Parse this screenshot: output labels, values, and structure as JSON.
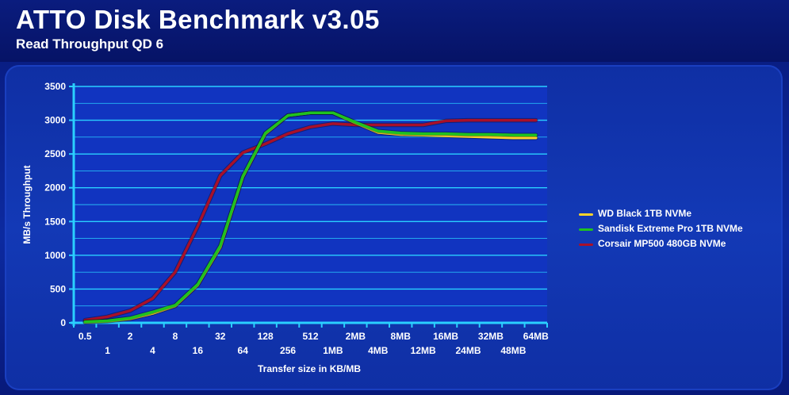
{
  "header": {
    "title": "ATTO Disk Benchmark v3.05",
    "subtitle": "Read Throughput QD 6"
  },
  "colors": {
    "background": "#0a1f86",
    "plot_background": "#1134c0",
    "gridline": "#2ad0ff",
    "axis": "#2ad0ff",
    "text": "#ffffff"
  },
  "chart_data": {
    "type": "line",
    "title": "",
    "xlabel": "Transfer size in KB/MB",
    "ylabel": "MB/s Throughput",
    "ylim": [
      0,
      3500
    ],
    "yticks": [
      0,
      500,
      1000,
      1500,
      2000,
      2500,
      3000,
      3500
    ],
    "grid": true,
    "legend_position": "right",
    "categories": [
      "0.5",
      "1",
      "2",
      "4",
      "8",
      "16",
      "32",
      "64",
      "128",
      "256",
      "512",
      "1MB",
      "2MB",
      "4MB",
      "8MB",
      "12MB",
      "16MB",
      "24MB",
      "32MB",
      "48MB",
      "64MB"
    ],
    "series": [
      {
        "name": "WD Black 1TB NVMe",
        "color": "#ffd42a",
        "values": [
          10,
          25,
          60,
          140,
          250,
          560,
          1120,
          2160,
          2800,
          3070,
          3110,
          3110,
          2960,
          2820,
          2790,
          2780,
          2770,
          2760,
          2750,
          2740,
          2740
        ]
      },
      {
        "name": "Sandisk Extreme Pro 1TB NVMe",
        "color": "#1fc21f",
        "values": [
          15,
          30,
          70,
          160,
          260,
          570,
          1140,
          2170,
          2810,
          3070,
          3110,
          3110,
          2970,
          2840,
          2810,
          2800,
          2800,
          2790,
          2790,
          2780,
          2780
        ]
      },
      {
        "name": "Corsair MP500 480GB NVMe",
        "color": "#a8102a",
        "values": [
          40,
          90,
          180,
          360,
          750,
          1430,
          2180,
          2520,
          2650,
          2800,
          2900,
          2950,
          2930,
          2930,
          2930,
          2930,
          2990,
          3000,
          3000,
          3000,
          3000
        ]
      }
    ]
  }
}
